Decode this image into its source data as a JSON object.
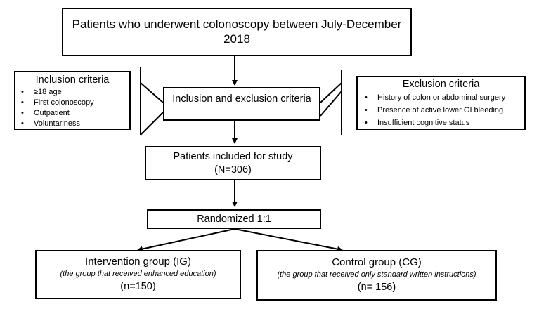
{
  "top": {
    "text": "Patients who underwent colonoscopy between July-December 2018"
  },
  "criteria": {
    "text": "Inclusion and exclusion criteria"
  },
  "inclusion": {
    "title": "Inclusion criteria",
    "items": [
      "≥18 age",
      "First colonoscopy",
      "Outpatient",
      "Voluntariness"
    ]
  },
  "exclusion": {
    "title": "Exclusion criteria",
    "items": [
      "History of colon or abdominal surgery",
      "Presence of active lower GI bleeding",
      "Insufficient cognitive status"
    ]
  },
  "included": {
    "line1": "Patients included for study",
    "line2": "(N=306)"
  },
  "randomized": {
    "text": "Randomized 1:1"
  },
  "intervention": {
    "title": "Intervention group (IG)",
    "note": "(the group that received enhanced education)",
    "n": "(n=150)"
  },
  "control": {
    "title": "Control group (CG)",
    "note": "(the group that received only standard written instructions)",
    "n": "(n= 156)"
  }
}
